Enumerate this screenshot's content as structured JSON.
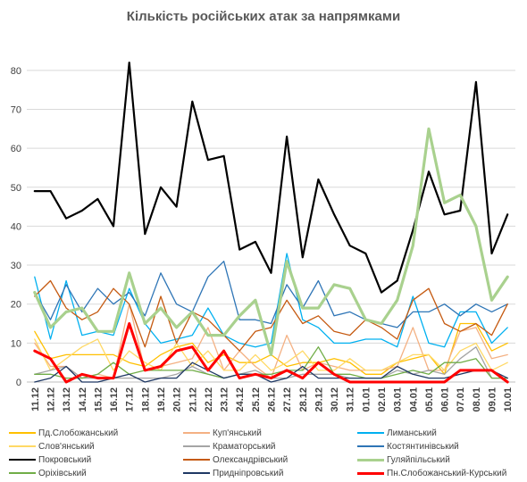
{
  "chart_data": {
    "type": "line",
    "title": "Кількість російських атак за напрямками",
    "xlabel": "",
    "ylabel": "",
    "ylim": [
      0,
      85
    ],
    "yticks": [
      0,
      10,
      20,
      30,
      40,
      50,
      60,
      70,
      80
    ],
    "grid": "horizontal",
    "legend": "bottom",
    "categories": [
      "11.12",
      "12.12",
      "13.12",
      "14.12",
      "15.12",
      "16.12",
      "17.12",
      "18.12",
      "19.12",
      "20.12",
      "21.12",
      "22.12",
      "23.12",
      "24.12",
      "25.12",
      "26.12",
      "27.12",
      "28.12",
      "29.12",
      "30.12",
      "31.12",
      "01.01",
      "02.01",
      "03.01",
      "04.01",
      "05.01",
      "06.01",
      "07.01",
      "08.01",
      "09.01",
      "10.01"
    ],
    "x_tick_labels": [
      "11.12",
      "12.12",
      "13.12",
      "14.12",
      "15.12",
      "16.12",
      "17.12",
      "18.12",
      "19.12",
      "20.12",
      "21.12",
      "22.12",
      "23.12",
      "24.12",
      "25.12",
      "26.12",
      "27.12",
      "28.12",
      "29.12",
      "30.12",
      "31.12",
      "01.01",
      "02.01",
      "03.01",
      "04.01",
      "05.01",
      "06.01",
      "07.01",
      "08.01",
      "09.01",
      "10.01"
    ],
    "series": [
      {
        "name": "Пд.Слобожанський",
        "color": "#FFC000",
        "width": 1.3,
        "values": [
          13,
          6,
          7,
          7,
          7,
          7,
          5,
          4,
          7,
          9,
          10,
          5,
          7,
          5,
          5,
          7,
          4,
          5,
          5,
          6,
          5,
          2,
          2,
          5,
          6,
          7,
          2,
          15,
          15,
          8,
          10
        ]
      },
      {
        "name": "Куп'янський",
        "color": "#F4B183",
        "width": 1.3,
        "values": [
          10,
          4,
          4,
          1,
          2,
          1,
          20,
          3,
          4,
          5,
          6,
          14,
          3,
          8,
          4,
          1,
          12,
          3,
          5,
          4,
          3,
          3,
          3,
          4,
          14,
          3,
          3,
          13,
          14,
          6,
          7
        ]
      },
      {
        "name": "Лиманський",
        "color": "#00B0F0",
        "width": 1.3,
        "values": [
          27,
          11,
          26,
          12,
          13,
          12,
          24,
          15,
          10,
          11,
          12,
          19,
          12,
          10,
          9,
          10,
          33,
          16,
          14,
          10,
          10,
          11,
          11,
          9,
          22,
          10,
          9,
          18,
          18,
          10,
          14
        ]
      },
      {
        "name": "Слов'янський",
        "color": "#FFD966",
        "width": 1.3,
        "values": [
          11,
          3,
          6,
          9,
          11,
          3,
          8,
          5,
          3,
          10,
          4,
          8,
          3,
          3,
          7,
          3,
          5,
          8,
          3,
          3,
          6,
          3,
          3,
          5,
          7,
          7,
          3,
          8,
          10,
          3,
          5
        ]
      },
      {
        "name": "Краматорський",
        "color": "#A5A5A5",
        "width": 1.3,
        "values": [
          2,
          3,
          4,
          1,
          1,
          1,
          1,
          1,
          1,
          2,
          4,
          2,
          1,
          2,
          3,
          1,
          1,
          2,
          2,
          2,
          1,
          1,
          1,
          3,
          2,
          3,
          2,
          6,
          9,
          1,
          1
        ]
      },
      {
        "name": "Костянтинівський",
        "color": "#2E75B6",
        "width": 1.3,
        "values": [
          23,
          16,
          25,
          18,
          24,
          20,
          23,
          17,
          28,
          20,
          18,
          27,
          31,
          16,
          16,
          15,
          25,
          19,
          26,
          17,
          18,
          16,
          15,
          14,
          18,
          18,
          20,
          17,
          20,
          18,
          20
        ]
      },
      {
        "name": "Покровський",
        "color": "#000000",
        "width": 2.2,
        "values": [
          49,
          49,
          42,
          44,
          47,
          40,
          82,
          38,
          50,
          45,
          72,
          57,
          58,
          34,
          36,
          28,
          63,
          32,
          52,
          43,
          35,
          33,
          23,
          26,
          39,
          54,
          43,
          44,
          77,
          33,
          43
        ]
      },
      {
        "name": "Олександрівський",
        "color": "#C55A11",
        "width": 1.3,
        "values": [
          22,
          26,
          19,
          16,
          18,
          24,
          20,
          9,
          22,
          10,
          18,
          16,
          12,
          8,
          13,
          14,
          21,
          15,
          17,
          13,
          12,
          16,
          14,
          11,
          21,
          24,
          15,
          13,
          15,
          12,
          20
        ]
      },
      {
        "name": "Гуляйпільський",
        "color": "#A9D18E",
        "width": 3.2,
        "values": [
          23,
          14,
          18,
          19,
          13,
          13,
          28,
          15,
          19,
          14,
          18,
          12,
          12,
          17,
          21,
          7,
          31,
          19,
          19,
          25,
          24,
          16,
          15,
          21,
          35,
          65,
          46,
          48,
          40,
          21,
          27
        ]
      },
      {
        "name": "Оріхівський",
        "color": "#70AD47",
        "width": 1.3,
        "values": [
          2,
          2,
          1,
          1,
          2,
          5,
          2,
          3,
          3,
          3,
          3,
          2,
          1,
          2,
          2,
          2,
          3,
          3,
          9,
          2,
          2,
          1,
          1,
          2,
          3,
          2,
          5,
          5,
          6,
          1,
          1
        ]
      },
      {
        "name": "Придніпровський",
        "color": "#1F3864",
        "width": 1.3,
        "values": [
          0,
          1,
          4,
          0,
          0,
          1,
          2,
          0,
          1,
          1,
          5,
          3,
          1,
          2,
          2,
          0,
          1,
          4,
          1,
          1,
          1,
          1,
          1,
          4,
          2,
          1,
          1,
          2,
          3,
          3,
          1
        ]
      },
      {
        "name": "Пн.Слобожанський-Курський",
        "color": "#FF0000",
        "width": 3.0,
        "values": [
          8,
          6,
          0,
          2,
          1,
          1,
          15,
          3,
          4,
          8,
          9,
          3,
          8,
          1,
          2,
          1,
          3,
          1,
          5,
          2,
          0,
          0,
          0,
          0,
          0,
          0,
          0,
          3,
          3,
          3,
          0
        ]
      }
    ]
  }
}
